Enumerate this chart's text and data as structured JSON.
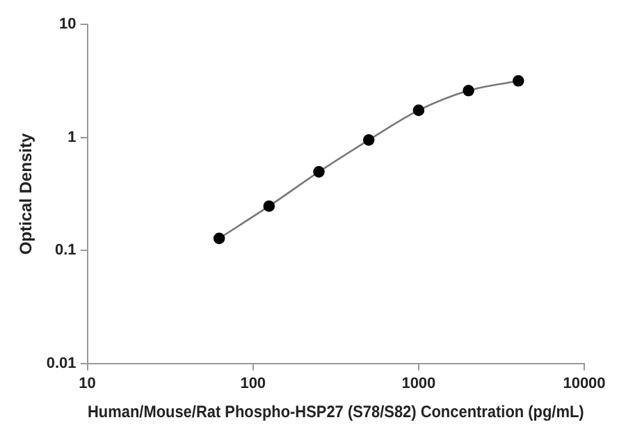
{
  "chart_data": {
    "type": "line",
    "xlabel": "Human/Mouse/Rat Phospho-HSP27 (S78/S82) Concentration (pg/mL)",
    "ylabel": "Optical Density",
    "log": "xy",
    "x": [
      62.5,
      125,
      250,
      500,
      1000,
      2000,
      4000
    ],
    "series": [
      {
        "color": "#000000",
        "values": [
          0.128,
          0.247,
          0.497,
          0.95,
          1.74,
          2.6,
          3.17
        ]
      }
    ],
    "xlim": [
      10,
      10000
    ],
    "xticks": [
      10,
      100,
      1000,
      10000
    ],
    "ylim": [
      0.01,
      10
    ],
    "yticks": [
      0.01,
      0.1,
      1,
      10
    ],
    "grid": false,
    "legend": false,
    "marker": "circle",
    "line_style": "solid"
  }
}
